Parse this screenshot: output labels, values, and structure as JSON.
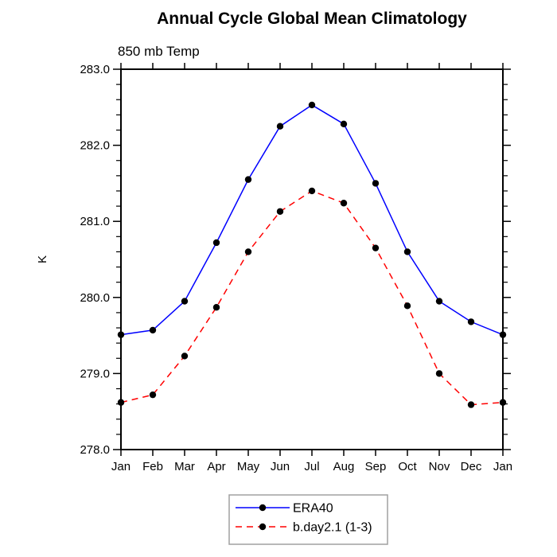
{
  "title": "Annual Cycle Global Mean Climatology",
  "subtitle": "850 mb Temp",
  "chart_data": {
    "type": "line",
    "categories": [
      "Jan",
      "Feb",
      "Mar",
      "Apr",
      "May",
      "Jun",
      "Jul",
      "Aug",
      "Sep",
      "Oct",
      "Nov",
      "Dec",
      "Jan"
    ],
    "title": "Annual Cycle Global Mean Climatology",
    "subtitle": "850 mb Temp",
    "xlabel": "",
    "ylabel": "K",
    "ylim": [
      278.0,
      283.0
    ],
    "ytick_major_interval": 1.0,
    "ytick_minor_interval": 0.2,
    "ytick_labels": [
      "278.0",
      "279.0",
      "280.0",
      "281.0",
      "282.0",
      "283.0"
    ],
    "grid": false,
    "legend_position": "bottom-center",
    "series": [
      {
        "name": "ERA40",
        "color": "#0000ff",
        "line_style": "solid",
        "marker": "filled-circle",
        "marker_color": "#000000",
        "values": [
          279.51,
          279.57,
          279.95,
          280.72,
          281.55,
          282.25,
          282.53,
          282.28,
          281.5,
          280.6,
          279.95,
          279.68,
          279.51
        ]
      },
      {
        "name": "b.day2.1 (1-3)",
        "color": "#ff0000",
        "line_style": "dashed",
        "marker": "filled-circle",
        "marker_color": "#000000",
        "values": [
          278.62,
          278.72,
          279.23,
          279.87,
          280.6,
          281.13,
          281.4,
          281.24,
          280.65,
          279.89,
          279.0,
          278.59,
          278.62
        ]
      }
    ]
  },
  "colors": {
    "background": "#ffffff",
    "axis": "#000000",
    "text": "#000000",
    "legend_border": "#a0a0a0"
  }
}
